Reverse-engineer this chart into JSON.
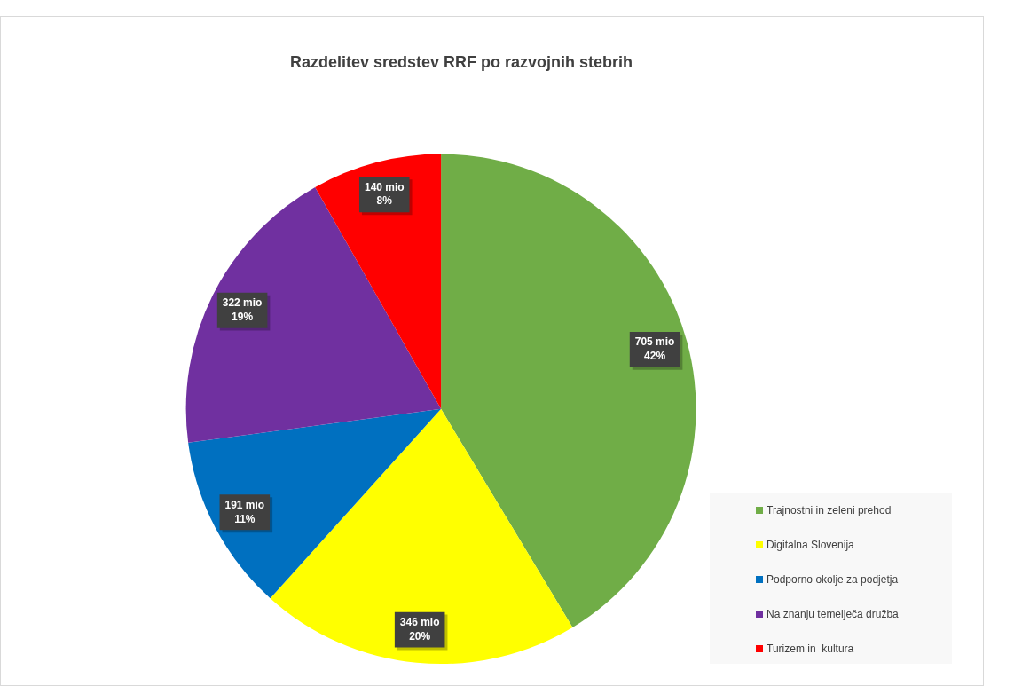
{
  "chart_data": {
    "type": "pie",
    "title": "Razdelitev sredstev RRF po razvojnih stebrih",
    "categories": [
      "Trajnostni in zeleni prehod",
      "Digitalna Slovenija",
      "Podporno okolje za podjetja",
      "Na znanju temelječa družba",
      "Turizem in  kultura"
    ],
    "values": [
      705,
      346,
      191,
      322,
      140
    ],
    "colors": [
      "#70ad47",
      "#ffff00",
      "#0070c0",
      "#7030a0",
      "#ff0000"
    ],
    "value_labels": [
      "705 mio\n42%",
      "346 mio\n20%",
      "191 mio\n11%",
      "322 mio\n19%",
      "140 mio\n8%"
    ],
    "legend": "bottom right"
  }
}
